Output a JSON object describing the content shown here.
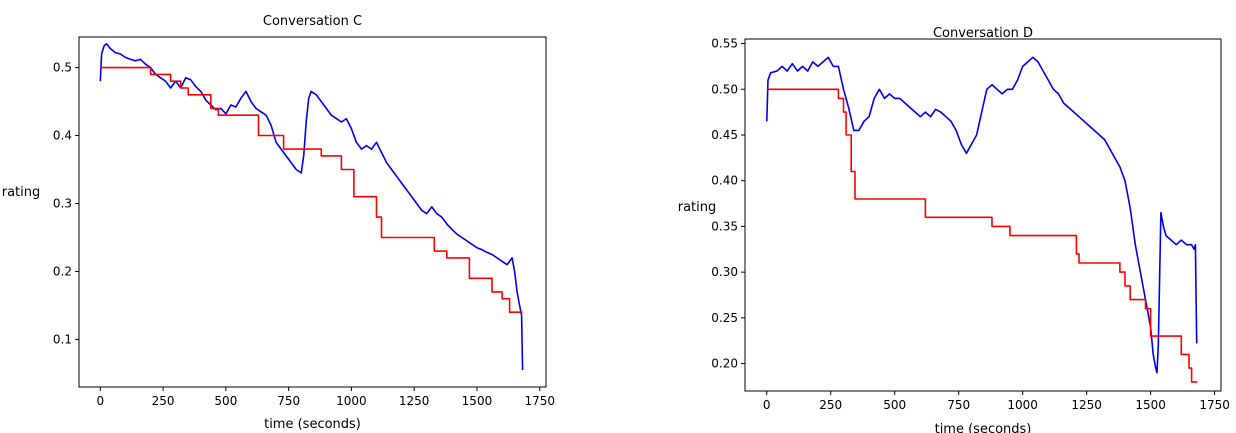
{
  "chart_data": [
    {
      "type": "line",
      "title": "Conversation C",
      "xlabel": "time (seconds)",
      "ylabel": "rating",
      "xlim": [
        -85,
        1775
      ],
      "ylim": [
        0.03,
        0.545
      ],
      "xticks": [
        0,
        250,
        500,
        750,
        1000,
        1250,
        1500,
        1750
      ],
      "xtick_labels": [
        "0",
        "250",
        "500",
        "750",
        "1000",
        "1250",
        "1500",
        "1750"
      ],
      "yticks": [
        0.1,
        0.2,
        0.3,
        0.4,
        0.5
      ],
      "ytick_labels": [
        "0.1",
        "0.2",
        "0.3",
        "0.4",
        "0.5"
      ],
      "grid": false,
      "series": [
        {
          "color": "#0000ee",
          "points": [
            [
              0,
              0.48
            ],
            [
              5,
              0.52
            ],
            [
              15,
              0.532
            ],
            [
              25,
              0.535
            ],
            [
              40,
              0.528
            ],
            [
              60,
              0.522
            ],
            [
              80,
              0.52
            ],
            [
              100,
              0.515
            ],
            [
              120,
              0.512
            ],
            [
              140,
              0.51
            ],
            [
              160,
              0.512
            ],
            [
              180,
              0.505
            ],
            [
              200,
              0.5
            ],
            [
              220,
              0.49
            ],
            [
              240,
              0.485
            ],
            [
              260,
              0.48
            ],
            [
              280,
              0.47
            ],
            [
              300,
              0.48
            ],
            [
              320,
              0.47
            ],
            [
              340,
              0.485
            ],
            [
              360,
              0.482
            ],
            [
              380,
              0.472
            ],
            [
              400,
              0.465
            ],
            [
              420,
              0.452
            ],
            [
              440,
              0.445
            ],
            [
              460,
              0.438
            ],
            [
              480,
              0.44
            ],
            [
              500,
              0.432
            ],
            [
              520,
              0.445
            ],
            [
              540,
              0.442
            ],
            [
              560,
              0.455
            ],
            [
              580,
              0.465
            ],
            [
              600,
              0.45
            ],
            [
              620,
              0.44
            ],
            [
              640,
              0.435
            ],
            [
              660,
              0.43
            ],
            [
              680,
              0.415
            ],
            [
              700,
              0.39
            ],
            [
              720,
              0.38
            ],
            [
              740,
              0.37
            ],
            [
              760,
              0.36
            ],
            [
              780,
              0.35
            ],
            [
              800,
              0.345
            ],
            [
              810,
              0.37
            ],
            [
              820,
              0.42
            ],
            [
              830,
              0.455
            ],
            [
              840,
              0.465
            ],
            [
              860,
              0.46
            ],
            [
              880,
              0.45
            ],
            [
              900,
              0.44
            ],
            [
              920,
              0.43
            ],
            [
              940,
              0.425
            ],
            [
              960,
              0.42
            ],
            [
              980,
              0.425
            ],
            [
              1000,
              0.41
            ],
            [
              1020,
              0.39
            ],
            [
              1040,
              0.38
            ],
            [
              1060,
              0.385
            ],
            [
              1080,
              0.38
            ],
            [
              1100,
              0.39
            ],
            [
              1120,
              0.375
            ],
            [
              1140,
              0.36
            ],
            [
              1160,
              0.35
            ],
            [
              1180,
              0.34
            ],
            [
              1200,
              0.33
            ],
            [
              1220,
              0.32
            ],
            [
              1240,
              0.31
            ],
            [
              1260,
              0.3
            ],
            [
              1280,
              0.29
            ],
            [
              1300,
              0.285
            ],
            [
              1320,
              0.295
            ],
            [
              1340,
              0.285
            ],
            [
              1360,
              0.28
            ],
            [
              1380,
              0.27
            ],
            [
              1400,
              0.262
            ],
            [
              1420,
              0.255
            ],
            [
              1440,
              0.25
            ],
            [
              1460,
              0.245
            ],
            [
              1480,
              0.24
            ],
            [
              1500,
              0.235
            ],
            [
              1520,
              0.232
            ],
            [
              1540,
              0.228
            ],
            [
              1560,
              0.225
            ],
            [
              1580,
              0.22
            ],
            [
              1600,
              0.215
            ],
            [
              1620,
              0.21
            ],
            [
              1640,
              0.22
            ],
            [
              1650,
              0.2
            ],
            [
              1660,
              0.17
            ],
            [
              1670,
              0.15
            ],
            [
              1678,
              0.135
            ],
            [
              1682,
              0.055
            ]
          ]
        },
        {
          "color": "#ff0000",
          "points": [
            [
              0,
              0.5
            ],
            [
              200,
              0.5
            ],
            [
              200,
              0.49
            ],
            [
              280,
              0.49
            ],
            [
              280,
              0.48
            ],
            [
              320,
              0.48
            ],
            [
              320,
              0.47
            ],
            [
              350,
              0.47
            ],
            [
              350,
              0.46
            ],
            [
              440,
              0.46
            ],
            [
              440,
              0.44
            ],
            [
              470,
              0.44
            ],
            [
              470,
              0.43
            ],
            [
              630,
              0.43
            ],
            [
              630,
              0.4
            ],
            [
              730,
              0.4
            ],
            [
              730,
              0.38
            ],
            [
              880,
              0.38
            ],
            [
              880,
              0.37
            ],
            [
              960,
              0.37
            ],
            [
              960,
              0.35
            ],
            [
              1010,
              0.35
            ],
            [
              1010,
              0.31
            ],
            [
              1100,
              0.31
            ],
            [
              1100,
              0.28
            ],
            [
              1120,
              0.28
            ],
            [
              1120,
              0.25
            ],
            [
              1330,
              0.25
            ],
            [
              1330,
              0.23
            ],
            [
              1380,
              0.23
            ],
            [
              1380,
              0.22
            ],
            [
              1470,
              0.22
            ],
            [
              1470,
              0.19
            ],
            [
              1560,
              0.19
            ],
            [
              1560,
              0.17
            ],
            [
              1600,
              0.17
            ],
            [
              1600,
              0.16
            ],
            [
              1630,
              0.16
            ],
            [
              1630,
              0.14
            ],
            [
              1682,
              0.14
            ]
          ]
        }
      ]
    },
    {
      "type": "line",
      "title": "Conversation D",
      "xlabel": "time (seconds)",
      "ylabel": "rating",
      "xlim": [
        -85,
        1775
      ],
      "ylim": [
        0.17,
        0.555
      ],
      "xticks": [
        0,
        250,
        500,
        750,
        1000,
        1250,
        1500,
        1750
      ],
      "xtick_labels": [
        "0",
        "250",
        "500",
        "750",
        "1000",
        "1250",
        "1500",
        "1750"
      ],
      "yticks": [
        0.2,
        0.25,
        0.3,
        0.35,
        0.4,
        0.45,
        0.5,
        0.55
      ],
      "ytick_labels": [
        "0.20",
        "0.25",
        "0.30",
        "0.35",
        "0.40",
        "0.45",
        "0.50",
        "0.55"
      ],
      "grid": false,
      "series": [
        {
          "color": "#0000ee",
          "points": [
            [
              0,
              0.465
            ],
            [
              5,
              0.51
            ],
            [
              15,
              0.518
            ],
            [
              40,
              0.52
            ],
            [
              60,
              0.525
            ],
            [
              80,
              0.52
            ],
            [
              100,
              0.528
            ],
            [
              120,
              0.52
            ],
            [
              140,
              0.525
            ],
            [
              160,
              0.52
            ],
            [
              180,
              0.53
            ],
            [
              200,
              0.525
            ],
            [
              220,
              0.53
            ],
            [
              240,
              0.535
            ],
            [
              260,
              0.525
            ],
            [
              280,
              0.525
            ],
            [
              300,
              0.5
            ],
            [
              320,
              0.48
            ],
            [
              340,
              0.455
            ],
            [
              360,
              0.455
            ],
            [
              380,
              0.465
            ],
            [
              400,
              0.47
            ],
            [
              420,
              0.49
            ],
            [
              440,
              0.5
            ],
            [
              460,
              0.49
            ],
            [
              480,
              0.495
            ],
            [
              500,
              0.49
            ],
            [
              520,
              0.49
            ],
            [
              540,
              0.485
            ],
            [
              560,
              0.48
            ],
            [
              580,
              0.475
            ],
            [
              600,
              0.47
            ],
            [
              620,
              0.475
            ],
            [
              640,
              0.47
            ],
            [
              660,
              0.478
            ],
            [
              680,
              0.475
            ],
            [
              700,
              0.47
            ],
            [
              720,
              0.465
            ],
            [
              740,
              0.455
            ],
            [
              760,
              0.44
            ],
            [
              780,
              0.43
            ],
            [
              800,
              0.44
            ],
            [
              820,
              0.45
            ],
            [
              840,
              0.475
            ],
            [
              860,
              0.5
            ],
            [
              880,
              0.505
            ],
            [
              900,
              0.5
            ],
            [
              920,
              0.495
            ],
            [
              940,
              0.5
            ],
            [
              960,
              0.5
            ],
            [
              980,
              0.51
            ],
            [
              1000,
              0.525
            ],
            [
              1020,
              0.53
            ],
            [
              1040,
              0.535
            ],
            [
              1060,
              0.53
            ],
            [
              1080,
              0.52
            ],
            [
              1100,
              0.51
            ],
            [
              1120,
              0.5
            ],
            [
              1140,
              0.495
            ],
            [
              1160,
              0.485
            ],
            [
              1180,
              0.48
            ],
            [
              1200,
              0.475
            ],
            [
              1220,
              0.47
            ],
            [
              1240,
              0.465
            ],
            [
              1260,
              0.46
            ],
            [
              1280,
              0.455
            ],
            [
              1300,
              0.45
            ],
            [
              1320,
              0.445
            ],
            [
              1340,
              0.435
            ],
            [
              1360,
              0.425
            ],
            [
              1380,
              0.415
            ],
            [
              1400,
              0.4
            ],
            [
              1420,
              0.37
            ],
            [
              1440,
              0.33
            ],
            [
              1460,
              0.3
            ],
            [
              1480,
              0.27
            ],
            [
              1500,
              0.24
            ],
            [
              1510,
              0.21
            ],
            [
              1520,
              0.195
            ],
            [
              1525,
              0.19
            ],
            [
              1530,
              0.22
            ],
            [
              1540,
              0.365
            ],
            [
              1550,
              0.35
            ],
            [
              1560,
              0.34
            ],
            [
              1580,
              0.335
            ],
            [
              1600,
              0.33
            ],
            [
              1620,
              0.335
            ],
            [
              1640,
              0.33
            ],
            [
              1660,
              0.33
            ],
            [
              1670,
              0.325
            ],
            [
              1675,
              0.33
            ],
            [
              1680,
              0.222
            ]
          ]
        },
        {
          "color": "#ff0000",
          "points": [
            [
              0,
              0.5
            ],
            [
              280,
              0.5
            ],
            [
              280,
              0.49
            ],
            [
              300,
              0.49
            ],
            [
              300,
              0.475
            ],
            [
              310,
              0.475
            ],
            [
              310,
              0.45
            ],
            [
              330,
              0.45
            ],
            [
              330,
              0.41
            ],
            [
              345,
              0.41
            ],
            [
              345,
              0.38
            ],
            [
              620,
              0.38
            ],
            [
              620,
              0.36
            ],
            [
              880,
              0.36
            ],
            [
              880,
              0.35
            ],
            [
              950,
              0.35
            ],
            [
              950,
              0.34
            ],
            [
              1210,
              0.34
            ],
            [
              1210,
              0.32
            ],
            [
              1220,
              0.32
            ],
            [
              1220,
              0.31
            ],
            [
              1380,
              0.31
            ],
            [
              1380,
              0.3
            ],
            [
              1400,
              0.3
            ],
            [
              1400,
              0.285
            ],
            [
              1420,
              0.285
            ],
            [
              1420,
              0.27
            ],
            [
              1480,
              0.27
            ],
            [
              1480,
              0.26
            ],
            [
              1500,
              0.26
            ],
            [
              1500,
              0.23
            ],
            [
              1620,
              0.23
            ],
            [
              1620,
              0.21
            ],
            [
              1650,
              0.21
            ],
            [
              1650,
              0.195
            ],
            [
              1660,
              0.195
            ],
            [
              1660,
              0.18
            ],
            [
              1682,
              0.18
            ]
          ]
        }
      ]
    }
  ]
}
